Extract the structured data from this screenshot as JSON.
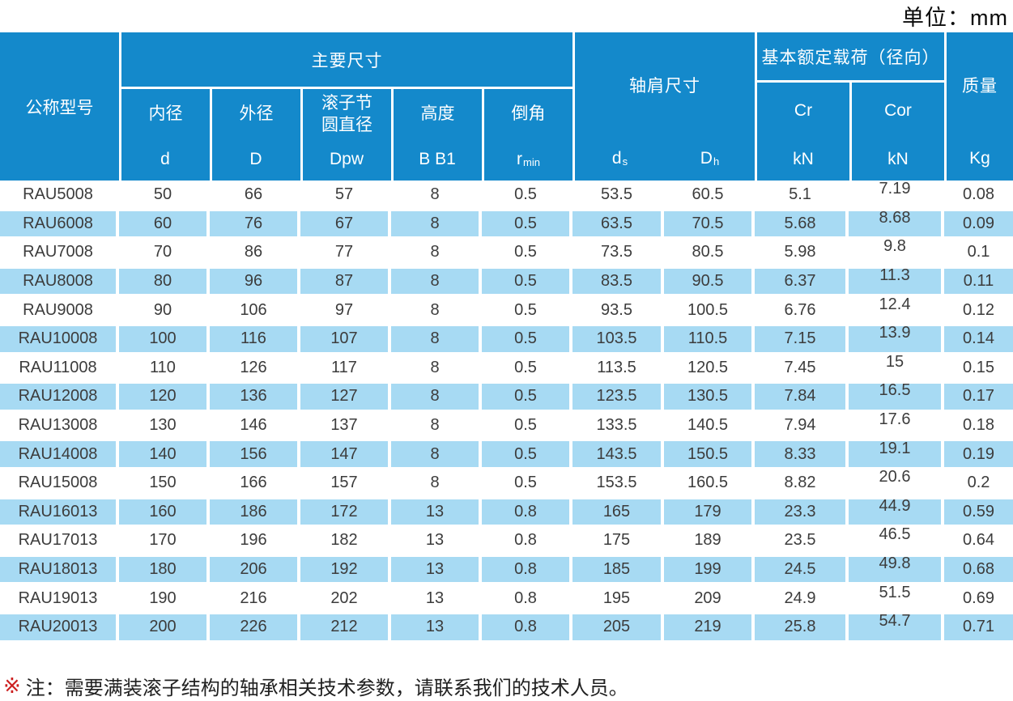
{
  "unit_label": "单位：mm",
  "table": {
    "header": {
      "model": "公称型号",
      "main_dims": {
        "title": "主要尺寸",
        "cols": [
          {
            "name": "内径",
            "sym": "d"
          },
          {
            "name": "外径",
            "sym": "D"
          },
          {
            "name": "滚子节\n圆直径",
            "sym": "Dpw"
          },
          {
            "name": "高度",
            "sym": "B B1"
          },
          {
            "name": "倒角",
            "sym": "r",
            "sub": "min"
          }
        ]
      },
      "shoulder": {
        "title": "轴肩尺寸",
        "cols": [
          {
            "sym": "d",
            "sub": "s"
          },
          {
            "sym": "D",
            "sub": "h"
          }
        ]
      },
      "load": {
        "title": "基本额定载荷（径向）",
        "cols": [
          {
            "sym": "Cr",
            "unit": "kN"
          },
          {
            "sym": "Cor",
            "unit": "kN"
          }
        ]
      },
      "mass": {
        "title": "质量",
        "unit": "Kg"
      }
    },
    "rows": [
      [
        "RAU5008",
        "50",
        "66",
        "57",
        "8",
        "0.5",
        "53.5",
        "60.5",
        "5.1",
        "7.19",
        "0.08"
      ],
      [
        "RAU6008",
        "60",
        "76",
        "67",
        "8",
        "0.5",
        "63.5",
        "70.5",
        "5.68",
        "8.68",
        "0.09"
      ],
      [
        "RAU7008",
        "70",
        "86",
        "77",
        "8",
        "0.5",
        "73.5",
        "80.5",
        "5.98",
        "9.8",
        "0.1"
      ],
      [
        "RAU8008",
        "80",
        "96",
        "87",
        "8",
        "0.5",
        "83.5",
        "90.5",
        "6.37",
        "11.3",
        "0.11"
      ],
      [
        "RAU9008",
        "90",
        "106",
        "97",
        "8",
        "0.5",
        "93.5",
        "100.5",
        "6.76",
        "12.4",
        "0.12"
      ],
      [
        "RAU10008",
        "100",
        "116",
        "107",
        "8",
        "0.5",
        "103.5",
        "110.5",
        "7.15",
        "13.9",
        "0.14"
      ],
      [
        "RAU11008",
        "110",
        "126",
        "117",
        "8",
        "0.5",
        "113.5",
        "120.5",
        "7.45",
        "15",
        "0.15"
      ],
      [
        "RAU12008",
        "120",
        "136",
        "127",
        "8",
        "0.5",
        "123.5",
        "130.5",
        "7.84",
        "16.5",
        "0.17"
      ],
      [
        "RAU13008",
        "130",
        "146",
        "137",
        "8",
        "0.5",
        "133.5",
        "140.5",
        "7.94",
        "17.6",
        "0.18"
      ],
      [
        "RAU14008",
        "140",
        "156",
        "147",
        "8",
        "0.5",
        "143.5",
        "150.5",
        "8.33",
        "19.1",
        "0.19"
      ],
      [
        "RAU15008",
        "150",
        "166",
        "157",
        "8",
        "0.5",
        "153.5",
        "160.5",
        "8.82",
        "20.6",
        "0.2"
      ],
      [
        "RAU16013",
        "160",
        "186",
        "172",
        "13",
        "0.8",
        "165",
        "179",
        "23.3",
        "44.9",
        "0.59"
      ],
      [
        "RAU17013",
        "170",
        "196",
        "182",
        "13",
        "0.8",
        "175",
        "189",
        "23.5",
        "46.5",
        "0.64"
      ],
      [
        "RAU18013",
        "180",
        "206",
        "192",
        "13",
        "0.8",
        "185",
        "199",
        "24.5",
        "49.8",
        "0.68"
      ],
      [
        "RAU19013",
        "190",
        "216",
        "202",
        "13",
        "0.8",
        "195",
        "209",
        "24.9",
        "51.5",
        "0.69"
      ],
      [
        "RAU20013",
        "200",
        "226",
        "212",
        "13",
        "0.8",
        "205",
        "219",
        "25.8",
        "54.7",
        "0.71"
      ]
    ]
  },
  "note": {
    "marker": "※",
    "text": "注：需要满装滚子结构的轴承相关技术参数，请联系我们的技术人员。"
  },
  "colors": {
    "header_blue": "#1489cb",
    "row_blue": "#a7daf3",
    "text_dark": "#3c3c3c",
    "note_red": "#cc1f1f"
  }
}
